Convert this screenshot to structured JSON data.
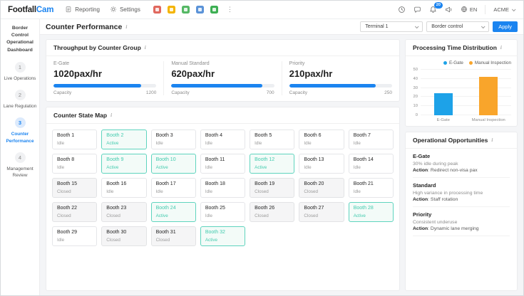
{
  "topbar": {
    "logo_primary": "Footfall",
    "logo_accent": "Cam",
    "menu": [
      {
        "label": "Reporting"
      },
      {
        "label": "Settings"
      }
    ],
    "app_icons": [
      {
        "name": "app-icon-red",
        "color": "#e0685e"
      },
      {
        "name": "app-icon-yellow",
        "color": "#f4b400"
      },
      {
        "name": "app-icon-green",
        "color": "#55b865"
      },
      {
        "name": "app-icon-blue",
        "color": "#5b93d8"
      },
      {
        "name": "app-icon-calendar-green",
        "color": "#3daf53"
      }
    ],
    "notification_count": "20",
    "language": "EN",
    "account": "ACME"
  },
  "sidebar": {
    "title": "Border Control Operational Dashboard",
    "steps": [
      {
        "number": "1",
        "label": "Live Operations",
        "active": false
      },
      {
        "number": "2",
        "label": "Lane Regulation",
        "active": false
      },
      {
        "number": "3",
        "label": "Counter Performance",
        "active": true
      },
      {
        "number": "4",
        "label": "Management Review",
        "active": false
      }
    ]
  },
  "header": {
    "title": "Counter Performance",
    "terminal_value": "Terminal 1",
    "zone_value": "Border control",
    "apply_label": "Apply"
  },
  "throughput": {
    "title": "Throughput by Counter Group",
    "metrics": [
      {
        "label": "E-Gate",
        "value": "1020pax/hr",
        "capacity_label": "Capacity",
        "capacity_display": "1200",
        "current": 1020,
        "capacity": 1200
      },
      {
        "label": "Manual Standard",
        "value": "620pax/hr",
        "capacity_label": "Capacity",
        "capacity_display": "700",
        "current": 620,
        "capacity": 700
      },
      {
        "label": "Priority",
        "value": "210pax/hr",
        "capacity_label": "Capacity",
        "capacity_display": "250",
        "current": 210,
        "capacity": 250
      }
    ]
  },
  "counter_state_map": {
    "title": "Counter State Map",
    "booths": [
      {
        "name": "Booth 1",
        "state": "Idle"
      },
      {
        "name": "Booth 2",
        "state": "Active"
      },
      {
        "name": "Booth 3",
        "state": "Idle"
      },
      {
        "name": "Booth 4",
        "state": "Idle"
      },
      {
        "name": "Booth 5",
        "state": "Idle"
      },
      {
        "name": "Booth 6",
        "state": "Idle"
      },
      {
        "name": "Booth 7",
        "state": "Idle"
      },
      {
        "name": "Booth 8",
        "state": "Idle"
      },
      {
        "name": "Booth 9",
        "state": "Active"
      },
      {
        "name": "Booth 10",
        "state": "Active"
      },
      {
        "name": "Booth 11",
        "state": "Idle"
      },
      {
        "name": "Booth 12",
        "state": "Active"
      },
      {
        "name": "Booth 13",
        "state": "Idle"
      },
      {
        "name": "Booth 14",
        "state": "Idle"
      },
      {
        "name": "Booth 15",
        "state": "Closed"
      },
      {
        "name": "Booth 16",
        "state": "Idle"
      },
      {
        "name": "Booth 17",
        "state": "Idle"
      },
      {
        "name": "Booth 18",
        "state": "Idle"
      },
      {
        "name": "Booth 19",
        "state": "Closed"
      },
      {
        "name": "Booth 20",
        "state": "Closed"
      },
      {
        "name": "Booth 21",
        "state": "Idle"
      },
      {
        "name": "Booth 22",
        "state": "Closed"
      },
      {
        "name": "Booth 23",
        "state": "Closed"
      },
      {
        "name": "Booth 24",
        "state": "Active"
      },
      {
        "name": "Booth 25",
        "state": "Idle"
      },
      {
        "name": "Booth 26",
        "state": "Closed"
      },
      {
        "name": "Booth 27",
        "state": "Closed"
      },
      {
        "name": "Booth 28",
        "state": "Active"
      },
      {
        "name": "Booth 29",
        "state": "Idle"
      },
      {
        "name": "Booth 30",
        "state": "Closed"
      },
      {
        "name": "Booth 31",
        "state": "Closed"
      },
      {
        "name": "Booth 32",
        "state": "Active"
      }
    ]
  },
  "chart_data": {
    "type": "bar",
    "title": "Processing Time Distribution",
    "categories": [
      "E-Gate",
      "Manual Inspection"
    ],
    "values": [
      24,
      42
    ],
    "bar_colors": [
      "#1da2e8",
      "#f9a52b"
    ],
    "legend": [
      "E-Gate",
      "Manual Inspection"
    ],
    "legend_position": "top-right",
    "xlabel": "",
    "ylabel": "",
    "ylim": [
      0,
      50
    ],
    "yticks": [
      0,
      10,
      20,
      30,
      40,
      50
    ],
    "grid": true
  },
  "opportunities": {
    "title": "Operational Opportunities",
    "items": [
      {
        "group": "E-Gate",
        "insight": "30% idle during peak",
        "action_label": "Action",
        "action": "Redirect non-visa pax"
      },
      {
        "group": "Standard",
        "insight": "High variance in processing time",
        "action_label": "Action",
        "action": "Staff rotation"
      },
      {
        "group": "Priority",
        "insight": "Consistent underuse",
        "action_label": "Action",
        "action": "Dynamic lane merging"
      }
    ]
  },
  "colors": {
    "accent_blue": "#1b84f0",
    "active_teal": "#43cbae",
    "active_teal_border": "#5fd4be",
    "active_teal_bg": "#f3fbf8"
  }
}
